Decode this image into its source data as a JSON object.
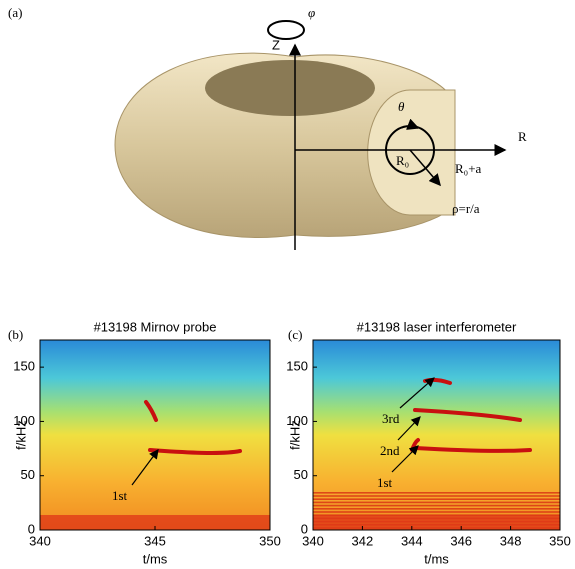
{
  "diagram": {
    "panel_label": "(a)",
    "labels": {
      "phi": "φ",
      "z": "Z",
      "theta": "θ",
      "r": "R",
      "r0": "R₀",
      "r0_plus_a": "R₀+a",
      "rho": "ρ=r/a"
    }
  },
  "chart_data": [
    {
      "type": "heatmap",
      "panel_label": "(b)",
      "title": "#13198 Mirnov probe",
      "x_label": "t/ms",
      "y_label": "f/kHz",
      "xlim": [
        340,
        350
      ],
      "xticks": [
        340,
        345,
        350
      ],
      "ylim": [
        0,
        175
      ],
      "yticks": [
        0,
        50,
        100,
        150
      ],
      "annotations": [
        "1st"
      ]
    },
    {
      "type": "heatmap",
      "panel_label": "(c)",
      "title": "#13198 laser interferometer",
      "x_label": "t/ms",
      "y_label": "f/kHz",
      "xlim": [
        340,
        350
      ],
      "xticks": [
        340,
        342,
        344,
        346,
        348,
        350
      ],
      "ylim": [
        0,
        175
      ],
      "yticks": [
        0,
        50,
        100,
        150
      ],
      "annotations": [
        "1st",
        "2nd",
        "3rd"
      ]
    }
  ]
}
